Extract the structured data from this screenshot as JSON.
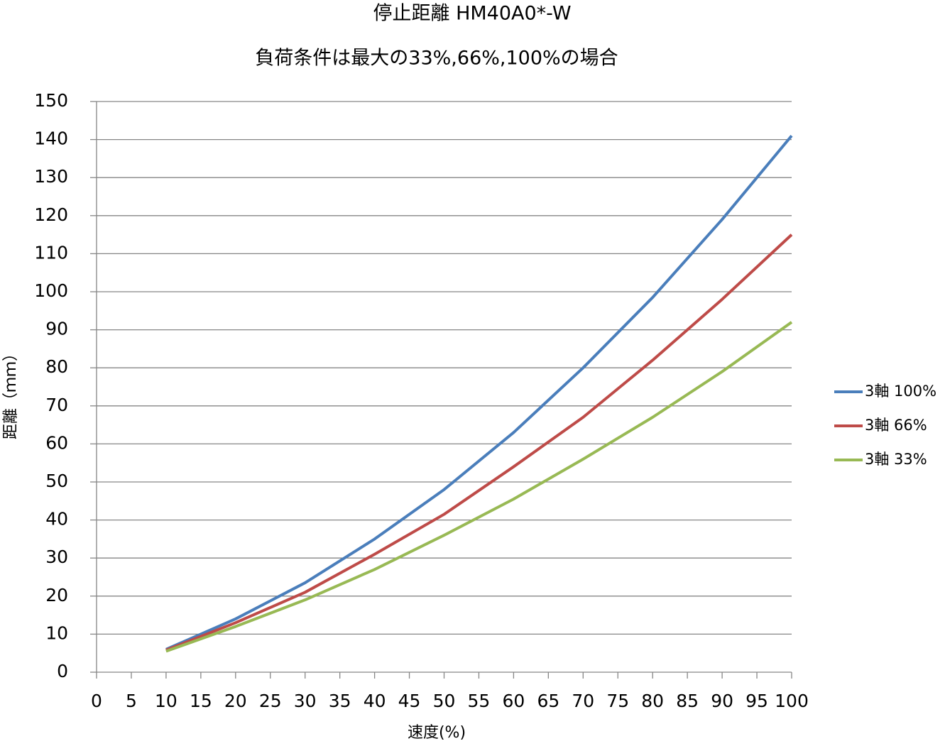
{
  "chart_data": {
    "type": "line",
    "title": "停止距離 HM40A0*-W",
    "subtitle": "負荷条件は最大の33%,66%,100%の場合",
    "x_label": "速度(%)",
    "y_label": "距離（ｍｍ）",
    "x": [
      10,
      20,
      30,
      40,
      50,
      60,
      70,
      80,
      90,
      100
    ],
    "series": [
      {
        "name": "3軸 100%",
        "color": "#4a7ebb",
        "values": [
          6,
          14,
          23.5,
          35,
          48,
          63,
          80,
          98.5,
          119,
          141
        ]
      },
      {
        "name": "3軸 66%",
        "color": "#be4b48",
        "values": [
          5.8,
          13,
          21,
          31,
          41.5,
          54,
          67,
          82,
          98,
          115
        ]
      },
      {
        "name": "3軸 33%",
        "color": "#98b954",
        "values": [
          5.5,
          12,
          19,
          27,
          36,
          45.5,
          56,
          67,
          79,
          92
        ]
      }
    ],
    "xlim": [
      0,
      100
    ],
    "xticks": [
      0,
      5,
      10,
      15,
      20,
      25,
      30,
      35,
      40,
      45,
      50,
      55,
      60,
      65,
      70,
      75,
      80,
      85,
      90,
      95,
      100
    ],
    "ylim": [
      0,
      150
    ],
    "yticks": [
      0,
      10,
      20,
      30,
      40,
      50,
      60,
      70,
      80,
      90,
      100,
      110,
      120,
      130,
      140,
      150
    ],
    "grid": true,
    "legend": "right"
  }
}
